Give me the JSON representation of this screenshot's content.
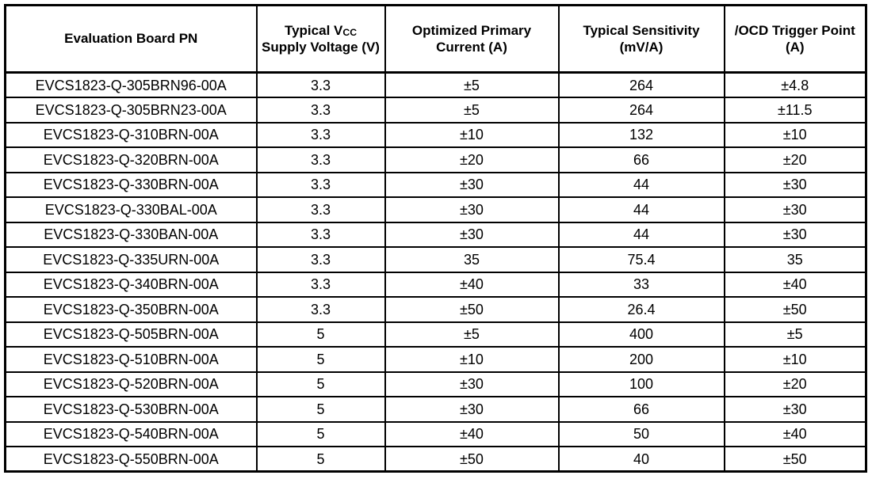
{
  "table": {
    "colors": {
      "border": "#000000",
      "text": "#000000",
      "background": "#ffffff"
    },
    "columns": [
      {
        "id": "pn",
        "label": "Evaluation Board PN"
      },
      {
        "id": "vcc",
        "label_parts": [
          {
            "text": "Typical V"
          },
          {
            "text": "CC",
            "sub": true
          },
          {
            "text": " Supply Voltage (V)"
          }
        ],
        "label": "Typical VCC Supply Voltage (V)"
      },
      {
        "id": "current",
        "label": "Optimized Primary Current (A)"
      },
      {
        "id": "sensitivity",
        "label": "Typical Sensitivity (mV/A)"
      },
      {
        "id": "ocd",
        "label": "/OCD Trigger Point (A)"
      }
    ],
    "rows": [
      [
        "EVCS1823-Q-305BRN96-00A",
        "3.3",
        "±5",
        "264",
        "±4.8"
      ],
      [
        "EVCS1823-Q-305BRN23-00A",
        "3.3",
        "±5",
        "264",
        "±11.5"
      ],
      [
        "EVCS1823-Q-310BRN-00A",
        "3.3",
        "±10",
        "132",
        "±10"
      ],
      [
        "EVCS1823-Q-320BRN-00A",
        "3.3",
        "±20",
        "66",
        "±20"
      ],
      [
        "EVCS1823-Q-330BRN-00A",
        "3.3",
        "±30",
        "44",
        "±30"
      ],
      [
        "EVCS1823-Q-330BAL-00A",
        "3.3",
        "±30",
        "44",
        "±30"
      ],
      [
        "EVCS1823-Q-330BAN-00A",
        "3.3",
        "±30",
        "44",
        "±30"
      ],
      [
        "EVCS1823-Q-335URN-00A",
        "3.3",
        "35",
        "75.4",
        "35"
      ],
      [
        "EVCS1823-Q-340BRN-00A",
        "3.3",
        "±40",
        "33",
        "±40"
      ],
      [
        "EVCS1823-Q-350BRN-00A",
        "3.3",
        "±50",
        "26.4",
        "±50"
      ],
      [
        "EVCS1823-Q-505BRN-00A",
        "5",
        "±5",
        "400",
        "±5"
      ],
      [
        "EVCS1823-Q-510BRN-00A",
        "5",
        "±10",
        "200",
        "±10"
      ],
      [
        "EVCS1823-Q-520BRN-00A",
        "5",
        "±30",
        "100",
        "±20"
      ],
      [
        "EVCS1823-Q-530BRN-00A",
        "5",
        "±30",
        "66",
        "±30"
      ],
      [
        "EVCS1823-Q-540BRN-00A",
        "5",
        "±40",
        "50",
        "±40"
      ],
      [
        "EVCS1823-Q-550BRN-00A",
        "5",
        "±50",
        "40",
        "±50"
      ]
    ]
  }
}
